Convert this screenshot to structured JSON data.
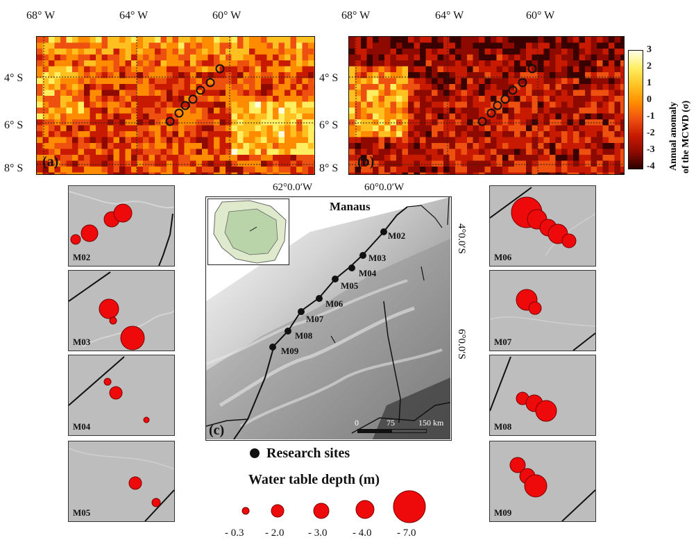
{
  "panels": {
    "a": {
      "label": "(a)"
    },
    "b": {
      "label": "(b)"
    },
    "c": {
      "label": "(c)"
    }
  },
  "top_axes": {
    "x_ticks": [
      "68° W",
      "64° W",
      "60° W"
    ],
    "y_ticks": [
      "4° S",
      "6° S",
      "8° S"
    ]
  },
  "colorbar": {
    "title_line1": "Annual anomaly",
    "title_line2": "of the MCWD (σ)",
    "ticks": [
      "3",
      "2",
      "1",
      "0",
      "-1",
      "-2",
      "-3",
      "-4"
    ],
    "colors": [
      "#ffffe0",
      "#ffee60",
      "#ffc020",
      "#ff8c00",
      "#ee5010",
      "#c81a00",
      "#8e0a00",
      "#3a0000"
    ]
  },
  "map_c": {
    "top_ticks": [
      "62°0.0′W",
      "60°0.0′W"
    ],
    "right_ticks": [
      "4°0.0′S",
      "6°0.0′S"
    ],
    "city": "Manaus",
    "sites": [
      "M02",
      "M03",
      "M04",
      "M05",
      "M06",
      "M07",
      "M08",
      "M09"
    ],
    "scale": {
      "zero": "0",
      "mid": "75",
      "end": "150 km"
    }
  },
  "insets": {
    "left": [
      "M02",
      "M03",
      "M04",
      "M05"
    ],
    "right": [
      "M06",
      "M07",
      "M08",
      "M09"
    ]
  },
  "legend": {
    "sites_label": "Research sites",
    "depth_title": "Water table depth (m)",
    "depth_values": [
      "- 0.3",
      "- 2.0",
      "- 3.0",
      "- 4.0",
      "- 7.0"
    ]
  },
  "colors": {
    "bubble_fill": "#ee0a0a",
    "bubble_stroke": "#7a0000",
    "inset_bg": "#bdbdbd",
    "relief_dark": "#5a5a5a",
    "relief_light": "#d8d8d8",
    "basin_green": "#b8d4a8"
  }
}
